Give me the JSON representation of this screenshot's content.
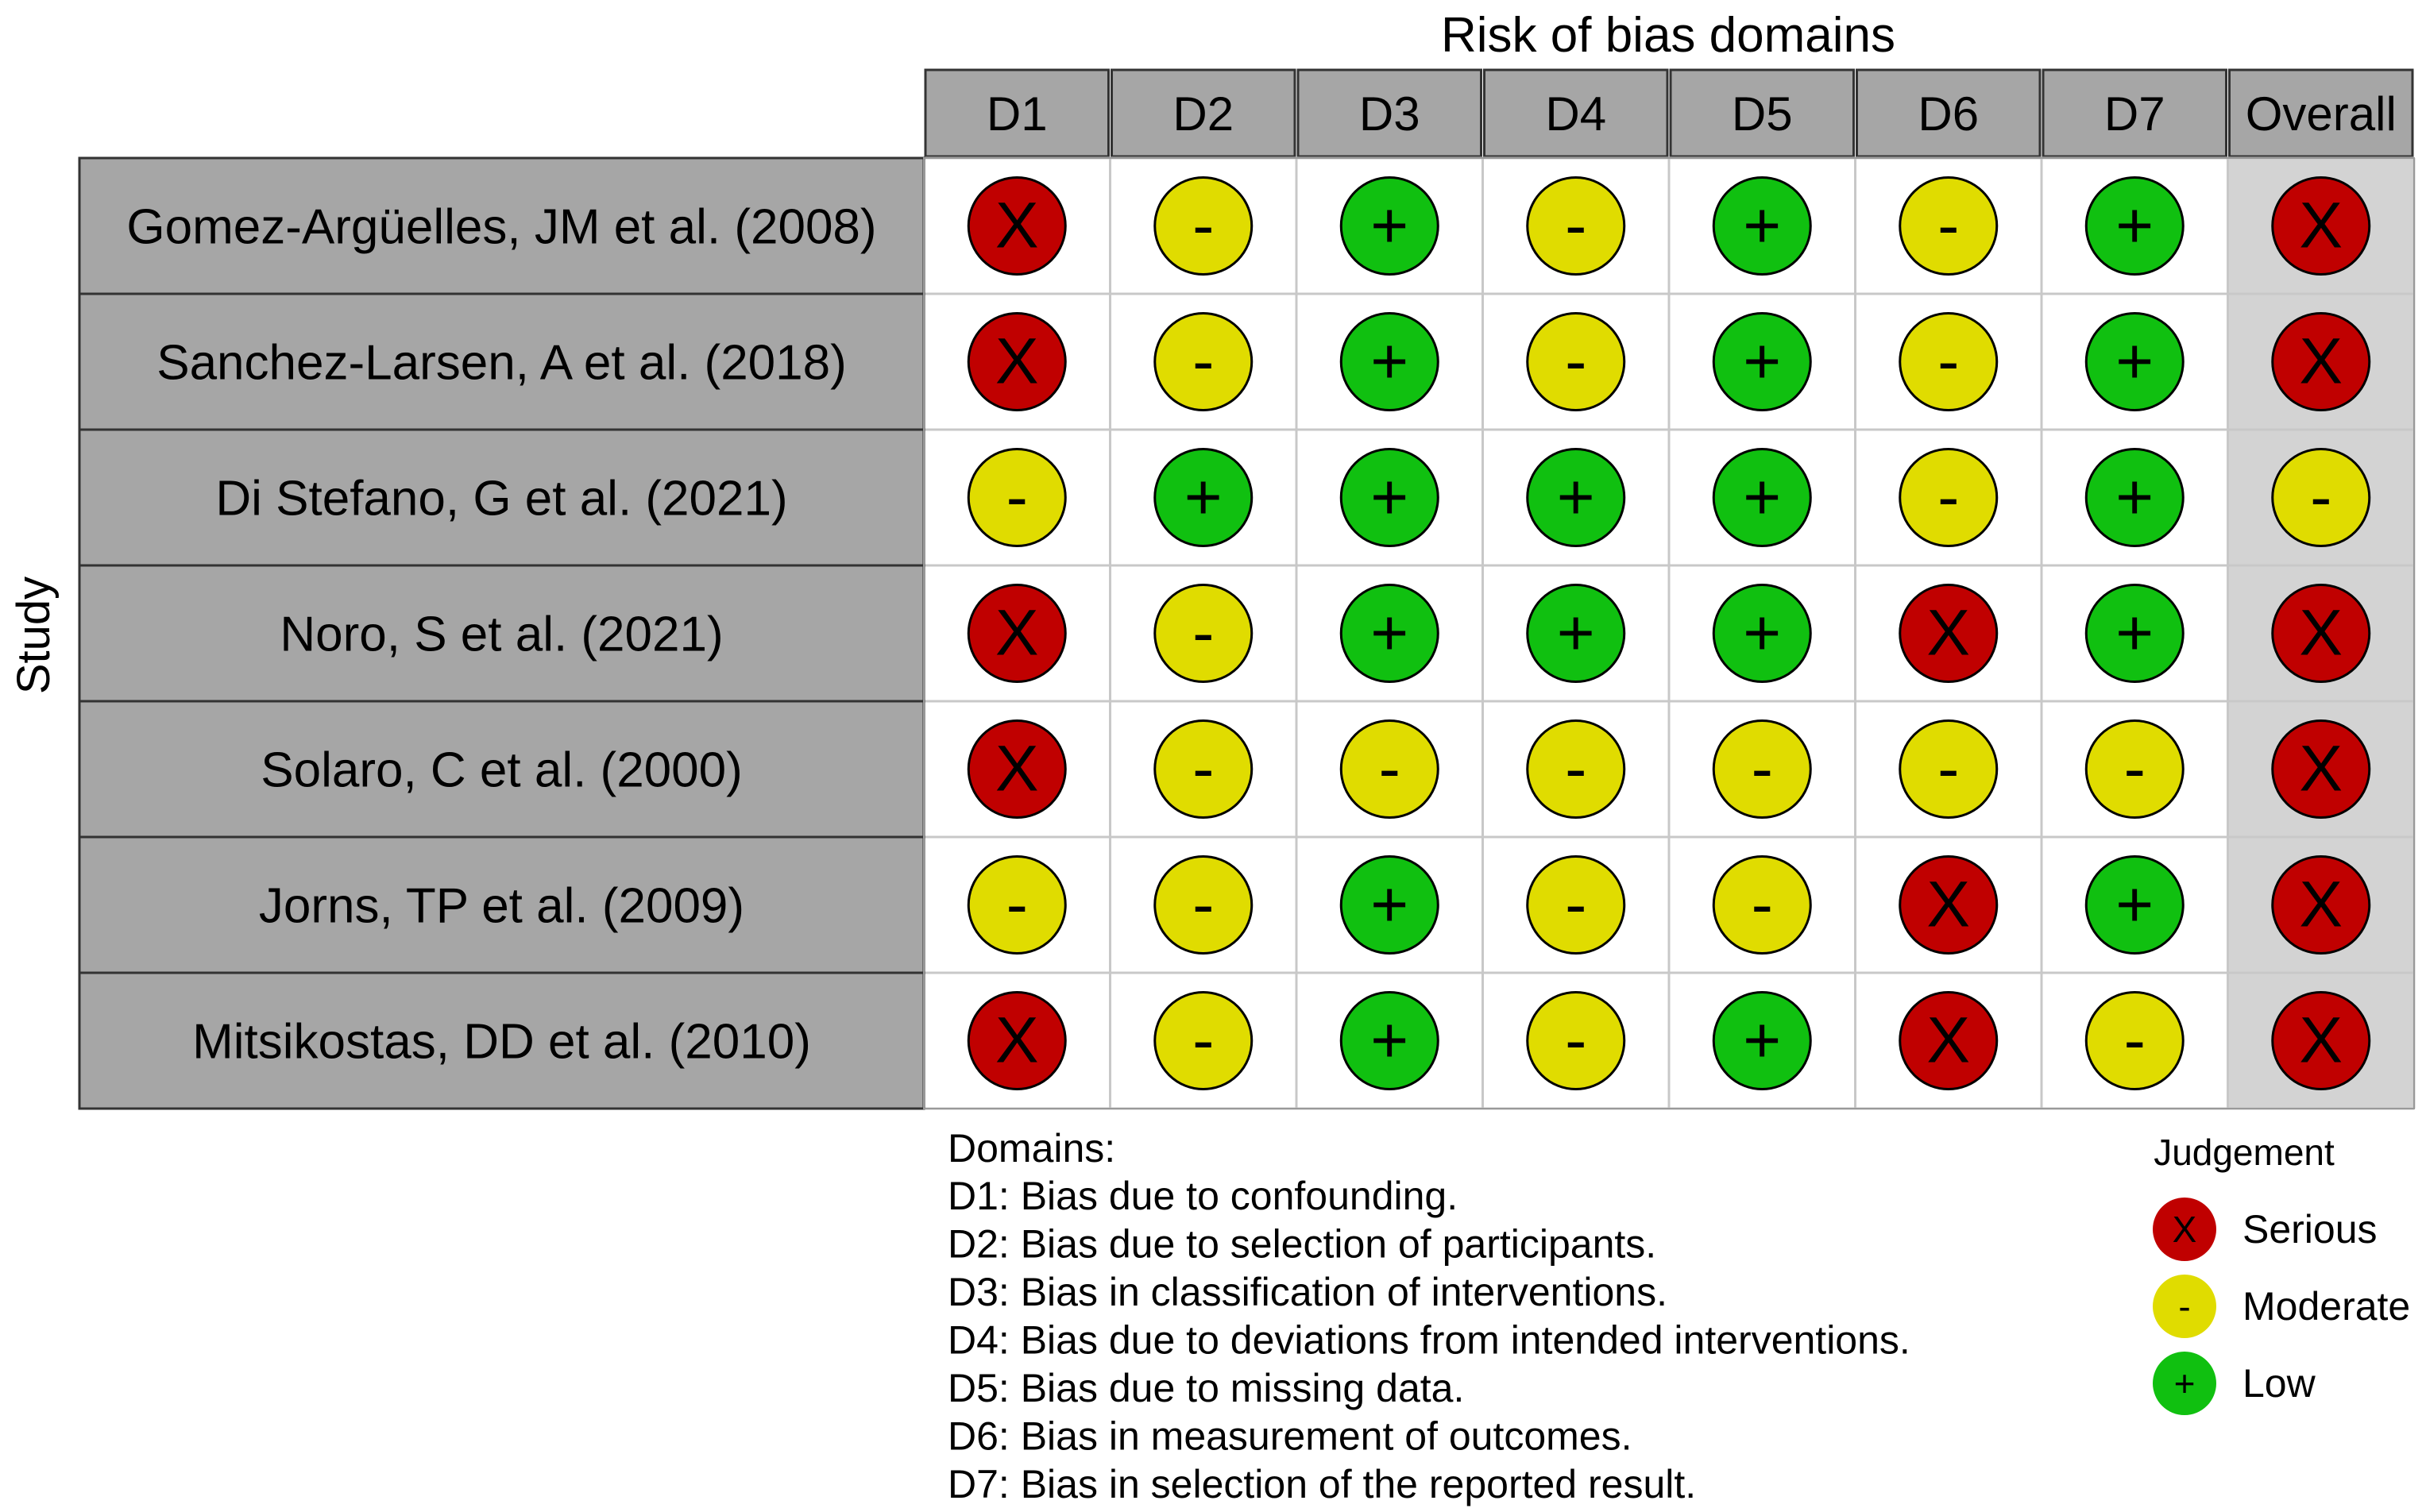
{
  "chart_data": {
    "type": "table",
    "title": "Risk of bias domains",
    "ylabel": "Study",
    "columns": [
      "D1",
      "D2",
      "D3",
      "D4",
      "D5",
      "D6",
      "D7",
      "Overall"
    ],
    "rows": [
      {
        "study": "Gomez-Argüelles, JM et al. (2008)",
        "judgements": [
          "Serious",
          "Moderate",
          "Low",
          "Moderate",
          "Low",
          "Moderate",
          "Low",
          "Serious"
        ]
      },
      {
        "study": "Sanchez-Larsen, A et al. (2018)",
        "judgements": [
          "Serious",
          "Moderate",
          "Low",
          "Moderate",
          "Low",
          "Moderate",
          "Low",
          "Serious"
        ]
      },
      {
        "study": "Di Stefano, G et al. (2021)",
        "judgements": [
          "Moderate",
          "Low",
          "Low",
          "Low",
          "Low",
          "Moderate",
          "Low",
          "Moderate"
        ]
      },
      {
        "study": "Noro, S et al. (2021)",
        "judgements": [
          "Serious",
          "Moderate",
          "Low",
          "Low",
          "Low",
          "Serious",
          "Low",
          "Serious"
        ]
      },
      {
        "study": "Solaro, C et al. (2000)",
        "judgements": [
          "Serious",
          "Moderate",
          "Moderate",
          "Moderate",
          "Moderate",
          "Moderate",
          "Moderate",
          "Serious"
        ]
      },
      {
        "study": "Jorns, TP et al. (2009)",
        "judgements": [
          "Moderate",
          "Moderate",
          "Low",
          "Moderate",
          "Moderate",
          "Serious",
          "Low",
          "Serious"
        ]
      },
      {
        "study": "Mitsikostas, DD et al. (2010)",
        "judgements": [
          "Serious",
          "Moderate",
          "Low",
          "Moderate",
          "Low",
          "Serious",
          "Moderate",
          "Serious"
        ]
      }
    ],
    "domains_heading": "Domains:",
    "domains": [
      "D1: Bias due to confounding.",
      "D2: Bias due to selection of participants.",
      "D3: Bias in classification of interventions.",
      "D4: Bias due to deviations from intended interventions.",
      "D5: Bias due to missing data.",
      "D6: Bias in measurement of outcomes.",
      "D7: Bias in selection of the reported result."
    ],
    "legend_title": "Judgement",
    "legend": [
      {
        "label": "Serious",
        "symbol": "X",
        "color": "#c00000"
      },
      {
        "label": "Moderate",
        "symbol": "-",
        "color": "#e0dc00"
      },
      {
        "label": "Low",
        "symbol": "+",
        "color": "#10c010"
      }
    ],
    "colors": {
      "Serious": "#c00000",
      "Moderate": "#e0dc00",
      "Low": "#10c010",
      "header_fill": "#a6a6a6",
      "overall_fill": "#d3d3d3",
      "grid": "#c8c8c8"
    },
    "symbols": {
      "Serious": "X",
      "Moderate": "-",
      "Low": "+"
    }
  }
}
